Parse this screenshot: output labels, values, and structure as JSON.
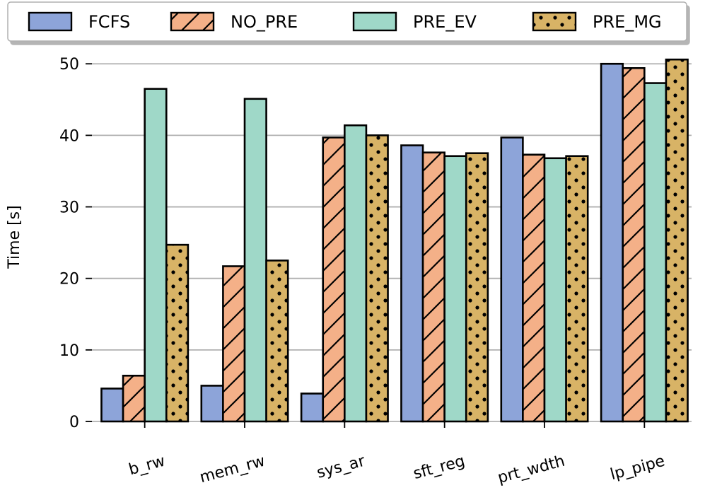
{
  "chart_data": {
    "type": "bar",
    "title": "",
    "xlabel": "",
    "ylabel": "Time [s]",
    "ylim": [
      0,
      52
    ],
    "yticks": [
      0,
      10,
      20,
      30,
      40,
      50
    ],
    "grid": "horizontal",
    "legend_position": "top",
    "categories": [
      "b_rw",
      "mem_rw",
      "sys_ar",
      "sft_reg",
      "prt_wdth",
      "lp_pipe"
    ],
    "series": [
      {
        "name": "FCFS",
        "color": "#8da4d9",
        "pattern": "none",
        "values": [
          4.6,
          5.0,
          3.9,
          38.6,
          39.7,
          50.0
        ]
      },
      {
        "name": "NO_PRE",
        "color": "#f4b088",
        "pattern": "hatch",
        "values": [
          6.4,
          21.7,
          39.7,
          37.6,
          37.3,
          49.4
        ]
      },
      {
        "name": "PRE_EV",
        "color": "#9fd8c8",
        "pattern": "none",
        "values": [
          46.5,
          45.1,
          41.4,
          37.1,
          36.8,
          47.3
        ]
      },
      {
        "name": "PRE_MG",
        "color": "#d8b366",
        "pattern": "dots",
        "values": [
          24.7,
          22.5,
          40.0,
          37.5,
          37.1,
          50.6
        ]
      }
    ]
  }
}
